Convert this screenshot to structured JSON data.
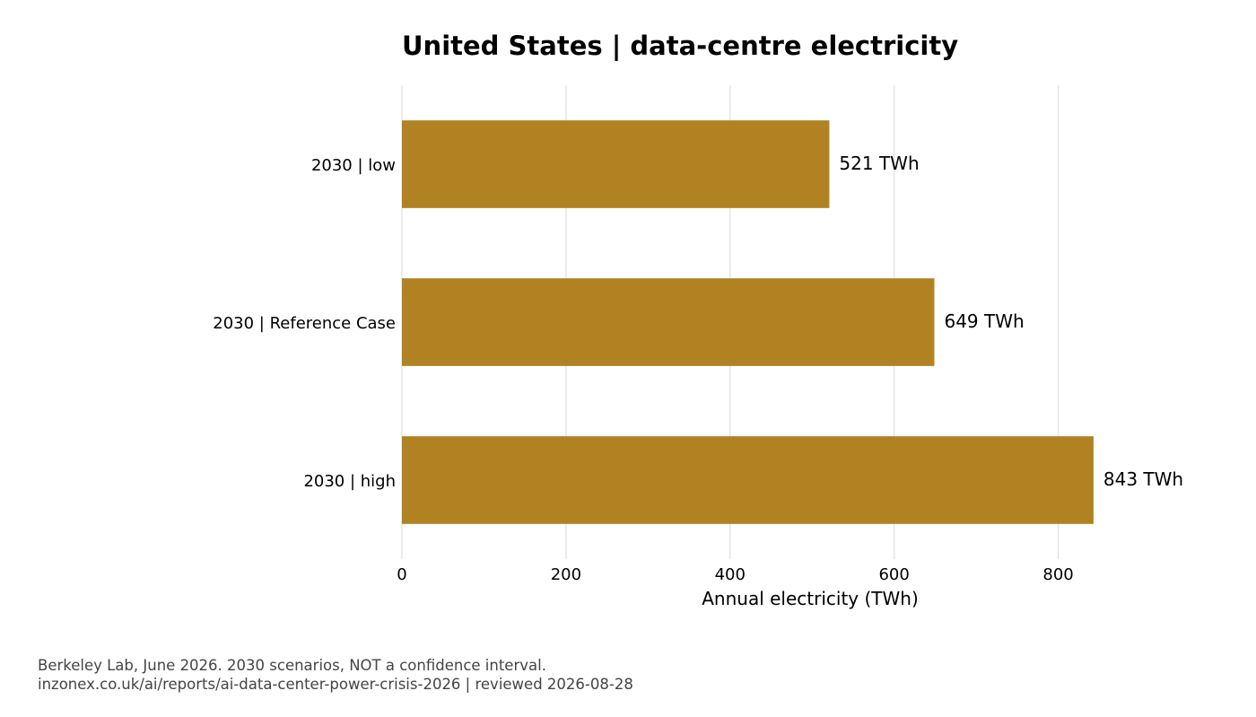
{
  "chart_data": {
    "type": "bar",
    "orientation": "horizontal",
    "title": "United States | data-centre electricity",
    "xlabel": "Annual electricity (TWh)",
    "ylabel": "",
    "categories": [
      "2030 | low",
      "2030 | Reference Case",
      "2030 | high"
    ],
    "values": [
      521,
      649,
      843
    ],
    "value_labels": [
      "521 TWh",
      "649 TWh",
      "843 TWh"
    ],
    "xlim": [
      0,
      900
    ],
    "x_ticks": [
      0,
      200,
      400,
      600,
      800
    ],
    "x_tick_labels": [
      "0",
      "200",
      "400",
      "600",
      "800"
    ],
    "bar_color": "#b08222",
    "grid": "vertical",
    "legend": "none"
  },
  "footer": {
    "source_line": "Berkeley Lab, June 2026. 2030 scenarios, NOT a confidence interval.",
    "link_line": "inzonex.co.uk/ai/reports/ai-data-center-power-crisis-2026 | reviewed 2026-08-28"
  }
}
